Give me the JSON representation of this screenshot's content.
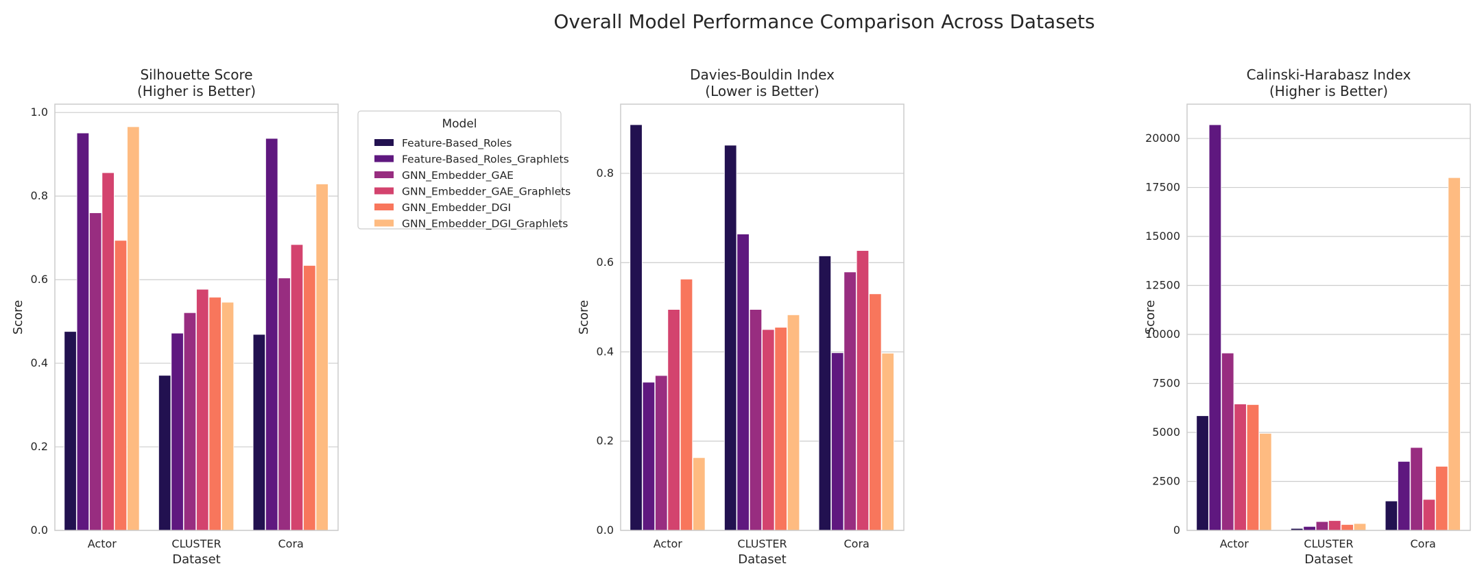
{
  "figure": {
    "title": "Overall Model Performance Comparison Across Datasets"
  },
  "legend": {
    "title": "Model",
    "placement": "right of first subplot"
  },
  "chart_data": [
    {
      "type": "bar",
      "title_line1": "Silhouette Score",
      "title_line2": "(Higher is Better)",
      "xlabel": "Dataset",
      "ylabel": "Score",
      "ylim": [
        0,
        1.02
      ],
      "yticks": [
        0.0,
        0.2,
        0.4,
        0.6,
        0.8,
        1.0
      ],
      "ytick_labels": [
        "0.0",
        "0.2",
        "0.4",
        "0.6",
        "0.8",
        "1.0"
      ],
      "grid": true,
      "categories": [
        "Actor",
        "CLUSTER",
        "Cora"
      ],
      "series": [
        {
          "name": "Feature-Based_Roles",
          "color": "#221150",
          "values": [
            0.476,
            0.371,
            0.469
          ]
        },
        {
          "name": "Feature-Based_Roles_Graphlets",
          "color": "#5f187f",
          "values": [
            0.951,
            0.472,
            0.938
          ]
        },
        {
          "name": "GNN_Embedder_GAE",
          "color": "#982d80",
          "values": [
            0.76,
            0.521,
            0.604
          ]
        },
        {
          "name": "GNN_Embedder_GAE_Graphlets",
          "color": "#d3436e",
          "values": [
            0.856,
            0.577,
            0.684
          ]
        },
        {
          "name": "GNN_Embedder_DGI",
          "color": "#f8765c",
          "values": [
            0.694,
            0.558,
            0.634
          ]
        },
        {
          "name": "GNN_Embedder_DGI_Graphlets",
          "color": "#febb81",
          "values": [
            0.966,
            0.546,
            0.829
          ]
        }
      ]
    },
    {
      "type": "bar",
      "title_line1": "Davies-Bouldin Index",
      "title_line2": "(Lower is Better)",
      "xlabel": "Dataset",
      "ylabel": "Score",
      "ylim": [
        0,
        0.955
      ],
      "yticks": [
        0.0,
        0.2,
        0.4,
        0.6,
        0.8
      ],
      "ytick_labels": [
        "0.0",
        "0.2",
        "0.4",
        "0.6",
        "0.8"
      ],
      "grid": true,
      "categories": [
        "Actor",
        "CLUSTER",
        "Cora"
      ],
      "series": [
        {
          "name": "Feature-Based_Roles",
          "color": "#221150",
          "values": [
            0.909,
            0.863,
            0.615
          ]
        },
        {
          "name": "Feature-Based_Roles_Graphlets",
          "color": "#5f187f",
          "values": [
            0.332,
            0.664,
            0.398
          ]
        },
        {
          "name": "GNN_Embedder_GAE",
          "color": "#982d80",
          "values": [
            0.347,
            0.495,
            0.579
          ]
        },
        {
          "name": "GNN_Embedder_GAE_Graphlets",
          "color": "#d3436e",
          "values": [
            0.495,
            0.45,
            0.627
          ]
        },
        {
          "name": "GNN_Embedder_DGI",
          "color": "#f8765c",
          "values": [
            0.563,
            0.455,
            0.53
          ]
        },
        {
          "name": "GNN_Embedder_DGI_Graphlets",
          "color": "#febb81",
          "values": [
            0.163,
            0.483,
            0.397
          ]
        }
      ]
    },
    {
      "type": "bar",
      "title_line1": "Calinski-Harabasz Index",
      "title_line2": "(Higher is Better)",
      "xlabel": "Dataset",
      "ylabel": "Score",
      "ylim": [
        0,
        21750
      ],
      "yticks": [
        0,
        2500,
        5000,
        7500,
        10000,
        12500,
        15000,
        17500,
        20000
      ],
      "ytick_labels": [
        "0",
        "2500",
        "5000",
        "7500",
        "10000",
        "12500",
        "15000",
        "17500",
        "20000"
      ],
      "grid": true,
      "categories": [
        "Actor",
        "CLUSTER",
        "Cora"
      ],
      "series": [
        {
          "name": "Feature-Based_Roles",
          "color": "#221150",
          "values": [
            5850,
            100,
            1500
          ]
        },
        {
          "name": "Feature-Based_Roles_Graphlets",
          "color": "#5f187f",
          "values": [
            20700,
            200,
            3520
          ]
        },
        {
          "name": "GNN_Embedder_GAE",
          "color": "#982d80",
          "values": [
            9050,
            450,
            4230
          ]
        },
        {
          "name": "GNN_Embedder_GAE_Graphlets",
          "color": "#d3436e",
          "values": [
            6450,
            500,
            1580
          ]
        },
        {
          "name": "GNN_Embedder_DGI",
          "color": "#f8765c",
          "values": [
            6420,
            300,
            3270
          ]
        },
        {
          "name": "GNN_Embedder_DGI_Graphlets",
          "color": "#febb81",
          "values": [
            4950,
            350,
            18000
          ]
        }
      ]
    }
  ]
}
